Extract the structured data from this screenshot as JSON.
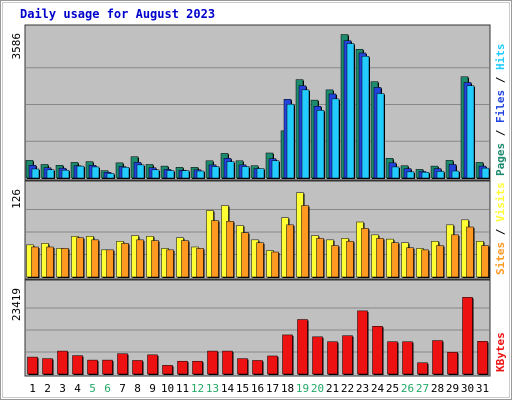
{
  "chart_data": {
    "type": "bar",
    "title": "Daily usage for August 2023",
    "categories": [
      "1",
      "2",
      "3",
      "4",
      "5",
      "6",
      "7",
      "8",
      "9",
      "10",
      "11",
      "12",
      "13",
      "14",
      "15",
      "16",
      "17",
      "18",
      "19",
      "20",
      "21",
      "22",
      "23",
      "24",
      "25",
      "26",
      "27",
      "28",
      "29",
      "30",
      "31"
    ],
    "weekend_days": [
      "5",
      "6",
      "12",
      "13",
      "19",
      "20",
      "26",
      "27"
    ],
    "colors": {
      "pages": "#1e8a6e",
      "files": "#2244dd",
      "hits": "#22ccff",
      "visits": "#ffff33",
      "sites": "#ff9922",
      "kbytes": "#ee1111",
      "weekday_label": "#000000",
      "weekend_label": "#22aa66",
      "panel_bg": "#c0c0c0",
      "title": "#0000cc"
    },
    "panels": [
      {
        "id": "hits-files-pages",
        "max_label": "3586",
        "ylim": [
          0,
          3586
        ],
        "legend": [
          "Pages",
          "Files",
          "Hits"
        ],
        "series": [
          {
            "name": "Pages",
            "values": [
              430,
              330,
              310,
              380,
              400,
              180,
              370,
              520,
              330,
              290,
              260,
              260,
              420,
              600,
              420,
              300,
              610,
              1150,
              2400,
              1900,
              2150,
              3500,
              3140,
              2350,
              480,
              300,
              210,
              290,
              430,
              2470,
              380
            ]
          },
          {
            "name": "Files",
            "values": [
              310,
              250,
              240,
              300,
              310,
              140,
              280,
              380,
              250,
              210,
              190,
              200,
              320,
              480,
              320,
              230,
              470,
              1920,
              2250,
              1750,
              2050,
              3350,
              3050,
              2210,
              370,
              230,
              160,
              230,
              330,
              2330,
              290
            ]
          },
          {
            "name": "Hits",
            "values": [
              220,
              200,
              190,
              290,
              270,
              110,
              260,
              320,
              200,
              180,
              180,
              170,
              280,
              400,
              280,
              230,
              420,
              1800,
              2150,
              1650,
              1930,
              3280,
              2970,
              2060,
              270,
              150,
              140,
              160,
              170,
              2250,
              240
            ]
          }
        ]
      },
      {
        "id": "visits-sites",
        "max_label": "126",
        "ylim": [
          0,
          126
        ],
        "legend": [
          "Sites",
          "Visits"
        ],
        "series": [
          {
            "name": "Visits",
            "values": [
              45,
              47,
              40,
              57,
              57,
              38,
              50,
              58,
              57,
              40,
              55,
              42,
              93,
              100,
              72,
              52,
              37,
              83,
              118,
              58,
              52,
              54,
              77,
              59,
              53,
              48,
              40,
              50,
              73,
              80,
              50
            ]
          },
          {
            "name": "Sites",
            "values": [
              42,
              42,
              40,
              55,
              52,
              38,
              47,
              52,
              51,
              38,
              51,
              40,
              79,
              78,
              62,
              48,
              35,
              73,
              100,
              54,
              44,
              50,
              68,
              54,
              48,
              41,
              38,
              44,
              59,
              70,
              44
            ]
          }
        ]
      },
      {
        "id": "kbytes",
        "max_label": "23419",
        "ylim": [
          0,
          23419
        ],
        "legend": [
          "KBytes"
        ],
        "series": [
          {
            "name": "KBytes",
            "values": [
              4500,
              4100,
              6100,
              4900,
              3700,
              3700,
              5400,
              3600,
              5100,
              2300,
              3400,
              3400,
              6100,
              6100,
              4100,
              3600,
              4800,
              10400,
              14500,
              9900,
              8600,
              10200,
              16800,
              12700,
              8600,
              8600,
              3000,
              8900,
              5800,
              20400,
              8700
            ]
          }
        ]
      }
    ]
  }
}
